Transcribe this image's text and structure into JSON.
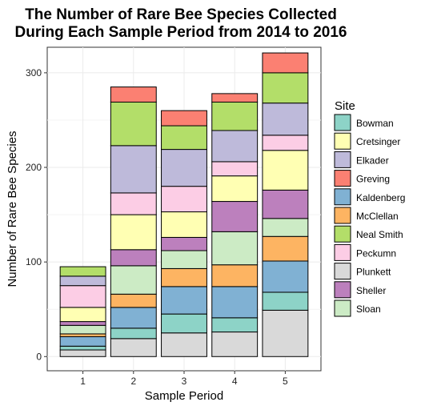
{
  "chart_data": {
    "type": "bar",
    "stacked": true,
    "title_line1": "The Number of Rare Bee Species Collected",
    "title_line2": "During Each Sample Period from 2014 to 2016",
    "xlabel": "Sample Period",
    "ylabel": "Number of Rare Bee Species",
    "categories": [
      "1",
      "2",
      "3",
      "4",
      "5"
    ],
    "ylim": [
      -15,
      327
    ],
    "yticks": [
      0,
      100,
      200,
      300
    ],
    "legend_title": "Site",
    "legend_position": "right",
    "grid": true,
    "series": [
      {
        "name": "Bowman",
        "color": "#8dd3c7",
        "values": [
          4,
          11,
          20,
          15,
          19
        ]
      },
      {
        "name": "Cretsinger",
        "color": "#ffffb3",
        "values": [
          15,
          37,
          27,
          27,
          42
        ]
      },
      {
        "name": "Elkader",
        "color": "#bebada",
        "values": [
          10,
          50,
          39,
          33,
          34
        ]
      },
      {
        "name": "Greving",
        "color": "#fb8072",
        "values": [
          0,
          16,
          16,
          9,
          21
        ]
      },
      {
        "name": "Kaldenberg",
        "color": "#80b1d3",
        "values": [
          10,
          22,
          29,
          33,
          33
        ]
      },
      {
        "name": "McClellan",
        "color": "#fdb462",
        "values": [
          3,
          14,
          19,
          23,
          26
        ]
      },
      {
        "name": "Neal Smith",
        "color": "#b3de69",
        "values": [
          10,
          46,
          25,
          30,
          32
        ]
      },
      {
        "name": "Peckumn",
        "color": "#fccde5",
        "values": [
          23,
          23,
          27,
          15,
          16
        ]
      },
      {
        "name": "Plunkett",
        "color": "#d9d9d9",
        "values": [
          7,
          19,
          25,
          26,
          49
        ]
      },
      {
        "name": "Sheller",
        "color": "#bc80bd",
        "values": [
          4,
          17,
          14,
          32,
          30
        ]
      },
      {
        "name": "Sloan",
        "color": "#ccebc5",
        "values": [
          9,
          30,
          19,
          35,
          19
        ]
      }
    ],
    "stack_order_bottom_to_top": [
      "Plunkett",
      "Bowman",
      "Kaldenberg",
      "McClellan",
      "Sloan",
      "Sheller",
      "Cretsinger",
      "Peckumn",
      "Elkader",
      "Neal Smith",
      "Greving"
    ]
  }
}
